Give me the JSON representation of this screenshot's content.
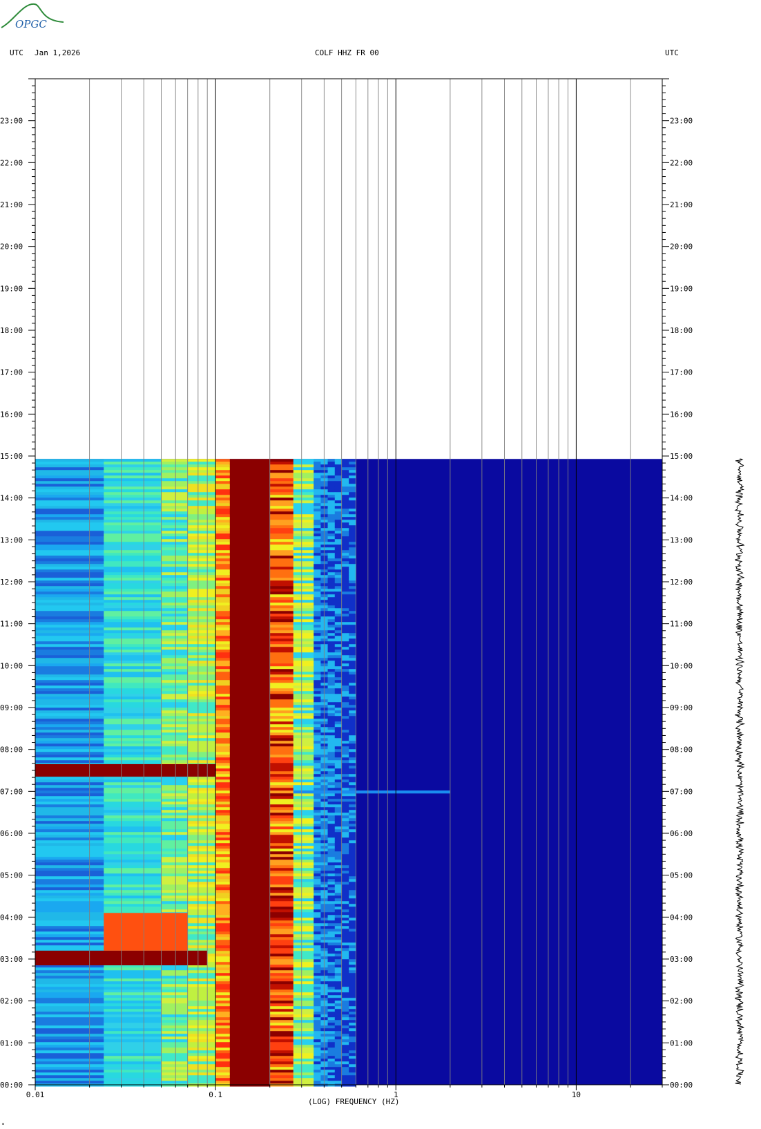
{
  "header": {
    "left_tz": "UTC",
    "date": "Jan 1,2026",
    "station": "COLF HHZ FR 00",
    "right_tz": "UTC"
  },
  "logo": {
    "text": "OPGC",
    "color": "#2e8b3a"
  },
  "footer_mark": "\"",
  "chart_data": {
    "type": "heatmap",
    "title": "COLF HHZ FR 00",
    "xlabel": "(LOG) FREQUENCY (HZ)",
    "xscale": "log",
    "xlim": [
      0.01,
      30
    ],
    "x_ticks": [
      {
        "value": 0.01,
        "label": "0.01"
      },
      {
        "value": 0.1,
        "label": "0.1"
      },
      {
        "value": 1,
        "label": "1"
      },
      {
        "value": 10,
        "label": "10"
      }
    ],
    "ylabel": "UTC",
    "ylim_hours": [
      0,
      24
    ],
    "y_ticks": [
      "00:00",
      "01:00",
      "02:00",
      "03:00",
      "04:00",
      "05:00",
      "06:00",
      "07:00",
      "08:00",
      "09:00",
      "10:00",
      "11:00",
      "12:00",
      "13:00",
      "14:00",
      "15:00",
      "16:00",
      "17:00",
      "18:00",
      "19:00",
      "20:00",
      "21:00",
      "22:00",
      "23:00"
    ],
    "data_end_hour": 14.93,
    "grid": "on",
    "colors": {
      "low": "#0a0aa0",
      "mid_low": "#1a8cf0",
      "mid": "#2ad8e8",
      "mid_high": "#f0f020",
      "high": "#ff5010",
      "max": "#8b0000"
    },
    "frequency_bands": [
      {
        "from": 0.01,
        "to": 0.024,
        "level": "cyan-blue"
      },
      {
        "from": 0.024,
        "to": 0.05,
        "level": "cyan-green"
      },
      {
        "from": 0.05,
        "to": 0.07,
        "level": "cyan-yellow"
      },
      {
        "from": 0.07,
        "to": 0.1,
        "level": "yellow-green"
      },
      {
        "from": 0.1,
        "to": 0.12,
        "level": "yellow-red"
      },
      {
        "from": 0.12,
        "to": 0.2,
        "level": "max"
      },
      {
        "from": 0.2,
        "to": 0.27,
        "level": "red-yellow"
      },
      {
        "from": 0.27,
        "to": 0.35,
        "level": "yellow-cyan"
      },
      {
        "from": 0.35,
        "to": 0.6,
        "level": "cyan-blue"
      },
      {
        "from": 0.6,
        "to": 30,
        "level": "low"
      }
    ],
    "events": [
      {
        "start_hour": 7.35,
        "end_hour": 7.65,
        "f_from": 0.01,
        "f_to": 0.1,
        "level": "max"
      },
      {
        "start_hour": 2.85,
        "end_hour": 3.2,
        "f_from": 0.01,
        "f_to": 0.09,
        "level": "max"
      },
      {
        "start_hour": 3.2,
        "end_hour": 4.1,
        "f_from": 0.024,
        "f_to": 0.07,
        "level": "high"
      },
      {
        "start_hour": 6.95,
        "end_hour": 7.02,
        "f_from": 0.27,
        "f_to": 2.0,
        "level": "mid_low"
      }
    ]
  }
}
